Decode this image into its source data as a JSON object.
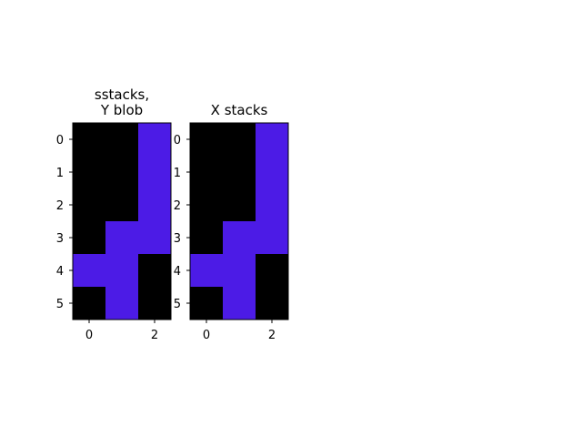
{
  "chart_data": [
    {
      "type": "heatmap",
      "title_lines": [
        "sstacks,",
        "Y blob"
      ],
      "x_ticks": [
        0,
        2
      ],
      "y_ticks": [
        0,
        1,
        2,
        3,
        4,
        5
      ],
      "grid": [
        [
          0,
          0,
          1
        ],
        [
          0,
          0,
          1
        ],
        [
          0,
          0,
          1
        ],
        [
          0,
          1,
          1
        ],
        [
          1,
          1,
          0
        ],
        [
          0,
          1,
          0
        ]
      ],
      "colors": {
        "0": "#000000",
        "1": "#4c1be6"
      }
    },
    {
      "type": "heatmap",
      "title_lines": [
        "X stacks"
      ],
      "x_ticks": [
        0,
        2
      ],
      "y_ticks": [
        0,
        1,
        2,
        3,
        4,
        5
      ],
      "grid": [
        [
          0,
          0,
          1
        ],
        [
          0,
          0,
          1
        ],
        [
          0,
          0,
          1
        ],
        [
          0,
          1,
          1
        ],
        [
          1,
          1,
          0
        ],
        [
          0,
          1,
          0
        ]
      ],
      "colors": {
        "0": "#000000",
        "1": "#4c1be6"
      }
    }
  ]
}
